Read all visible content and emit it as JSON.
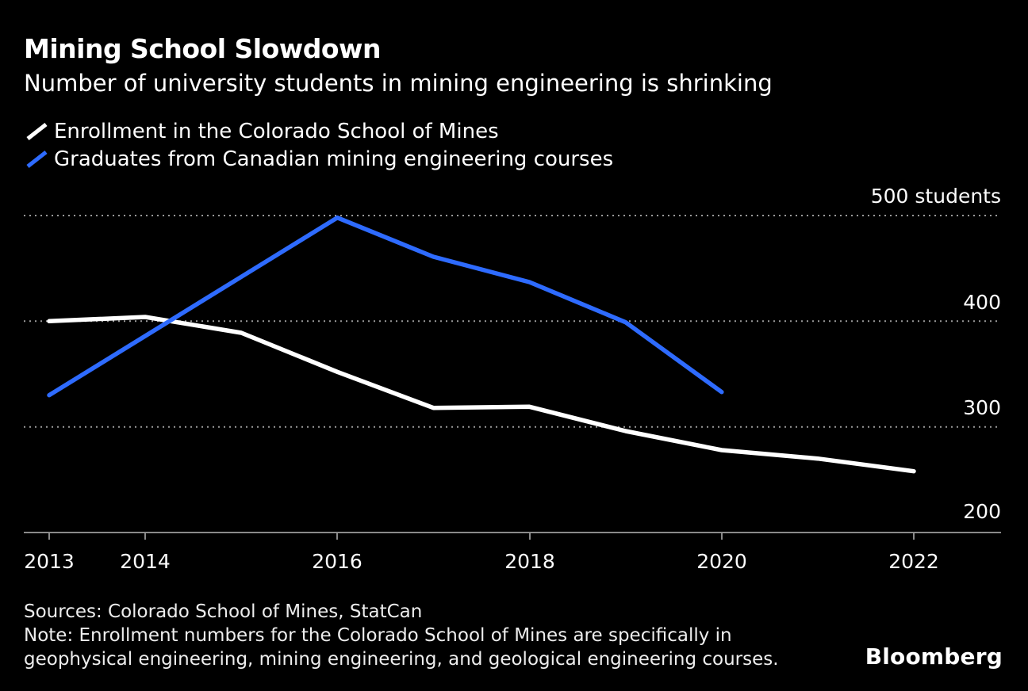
{
  "header": {
    "title": "Mining School Slowdown",
    "subtitle": "Number of university students in mining engineering is shrinking"
  },
  "legend": {
    "items": [
      {
        "label": "Enrollment in the Colorado School of Mines",
        "color": "#ffffff"
      },
      {
        "label": "Graduates from Canadian mining engineering courses",
        "color": "#2e6bff"
      }
    ]
  },
  "chart_data": {
    "type": "line",
    "x": [
      2013,
      2014,
      2015,
      2016,
      2017,
      2018,
      2019,
      2020,
      2021,
      2022
    ],
    "series": [
      {
        "name": "Enrollment in the Colorado School of Mines",
        "color": "#ffffff",
        "values": [
          400,
          404,
          389,
          352,
          318,
          319,
          296,
          278,
          270,
          258
        ]
      },
      {
        "name": "Graduates from Canadian mining engineering courses",
        "color": "#2e6bff",
        "values": [
          330,
          386,
          442,
          498,
          461,
          437,
          399,
          333
        ]
      }
    ],
    "ylim": [
      200,
      500
    ],
    "yticks": [
      500,
      400,
      300,
      200
    ],
    "ytick_labels": [
      "500 students",
      "400",
      "300",
      "200"
    ],
    "xticks": [
      2013,
      2014,
      2016,
      2018,
      2020,
      2022
    ],
    "xtick_labels": [
      "2013",
      "2014",
      "2016",
      "2018",
      "2020",
      "2022"
    ],
    "grid": "dotted horizontal",
    "legend_position": "top-left",
    "colors": {
      "background": "#000000",
      "gridline": "#9a9a9a",
      "axis": "#8a8a8a"
    }
  },
  "footer": {
    "sources": "Sources: Colorado School of Mines, StatCan",
    "note": "Note: Enrollment numbers for the Colorado School of Mines are specifically in geophysical engineering, mining engineering, and geological engineering courses.",
    "brand": "Bloomberg"
  }
}
